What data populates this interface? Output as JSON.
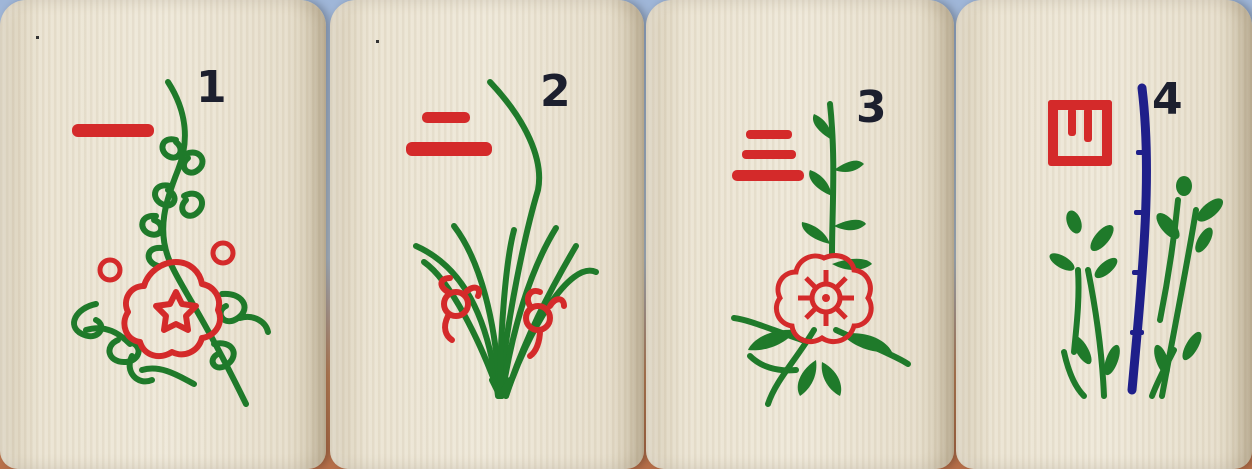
{
  "colors": {
    "red": "#d42a2a",
    "green": "#1f7a2a",
    "navy": "#1f1f8a",
    "ink": "#1c1f2e"
  },
  "tiles": [
    {
      "number": "1",
      "character": "一",
      "name": "plum",
      "icon": "plum-blossom-icon"
    },
    {
      "number": "2",
      "character": "二",
      "name": "orchid",
      "icon": "orchid-icon"
    },
    {
      "number": "3",
      "character": "三",
      "name": "chrysanthemum",
      "icon": "chrysanthemum-icon"
    },
    {
      "number": "4",
      "character": "四",
      "name": "bamboo",
      "icon": "bamboo-icon"
    }
  ]
}
